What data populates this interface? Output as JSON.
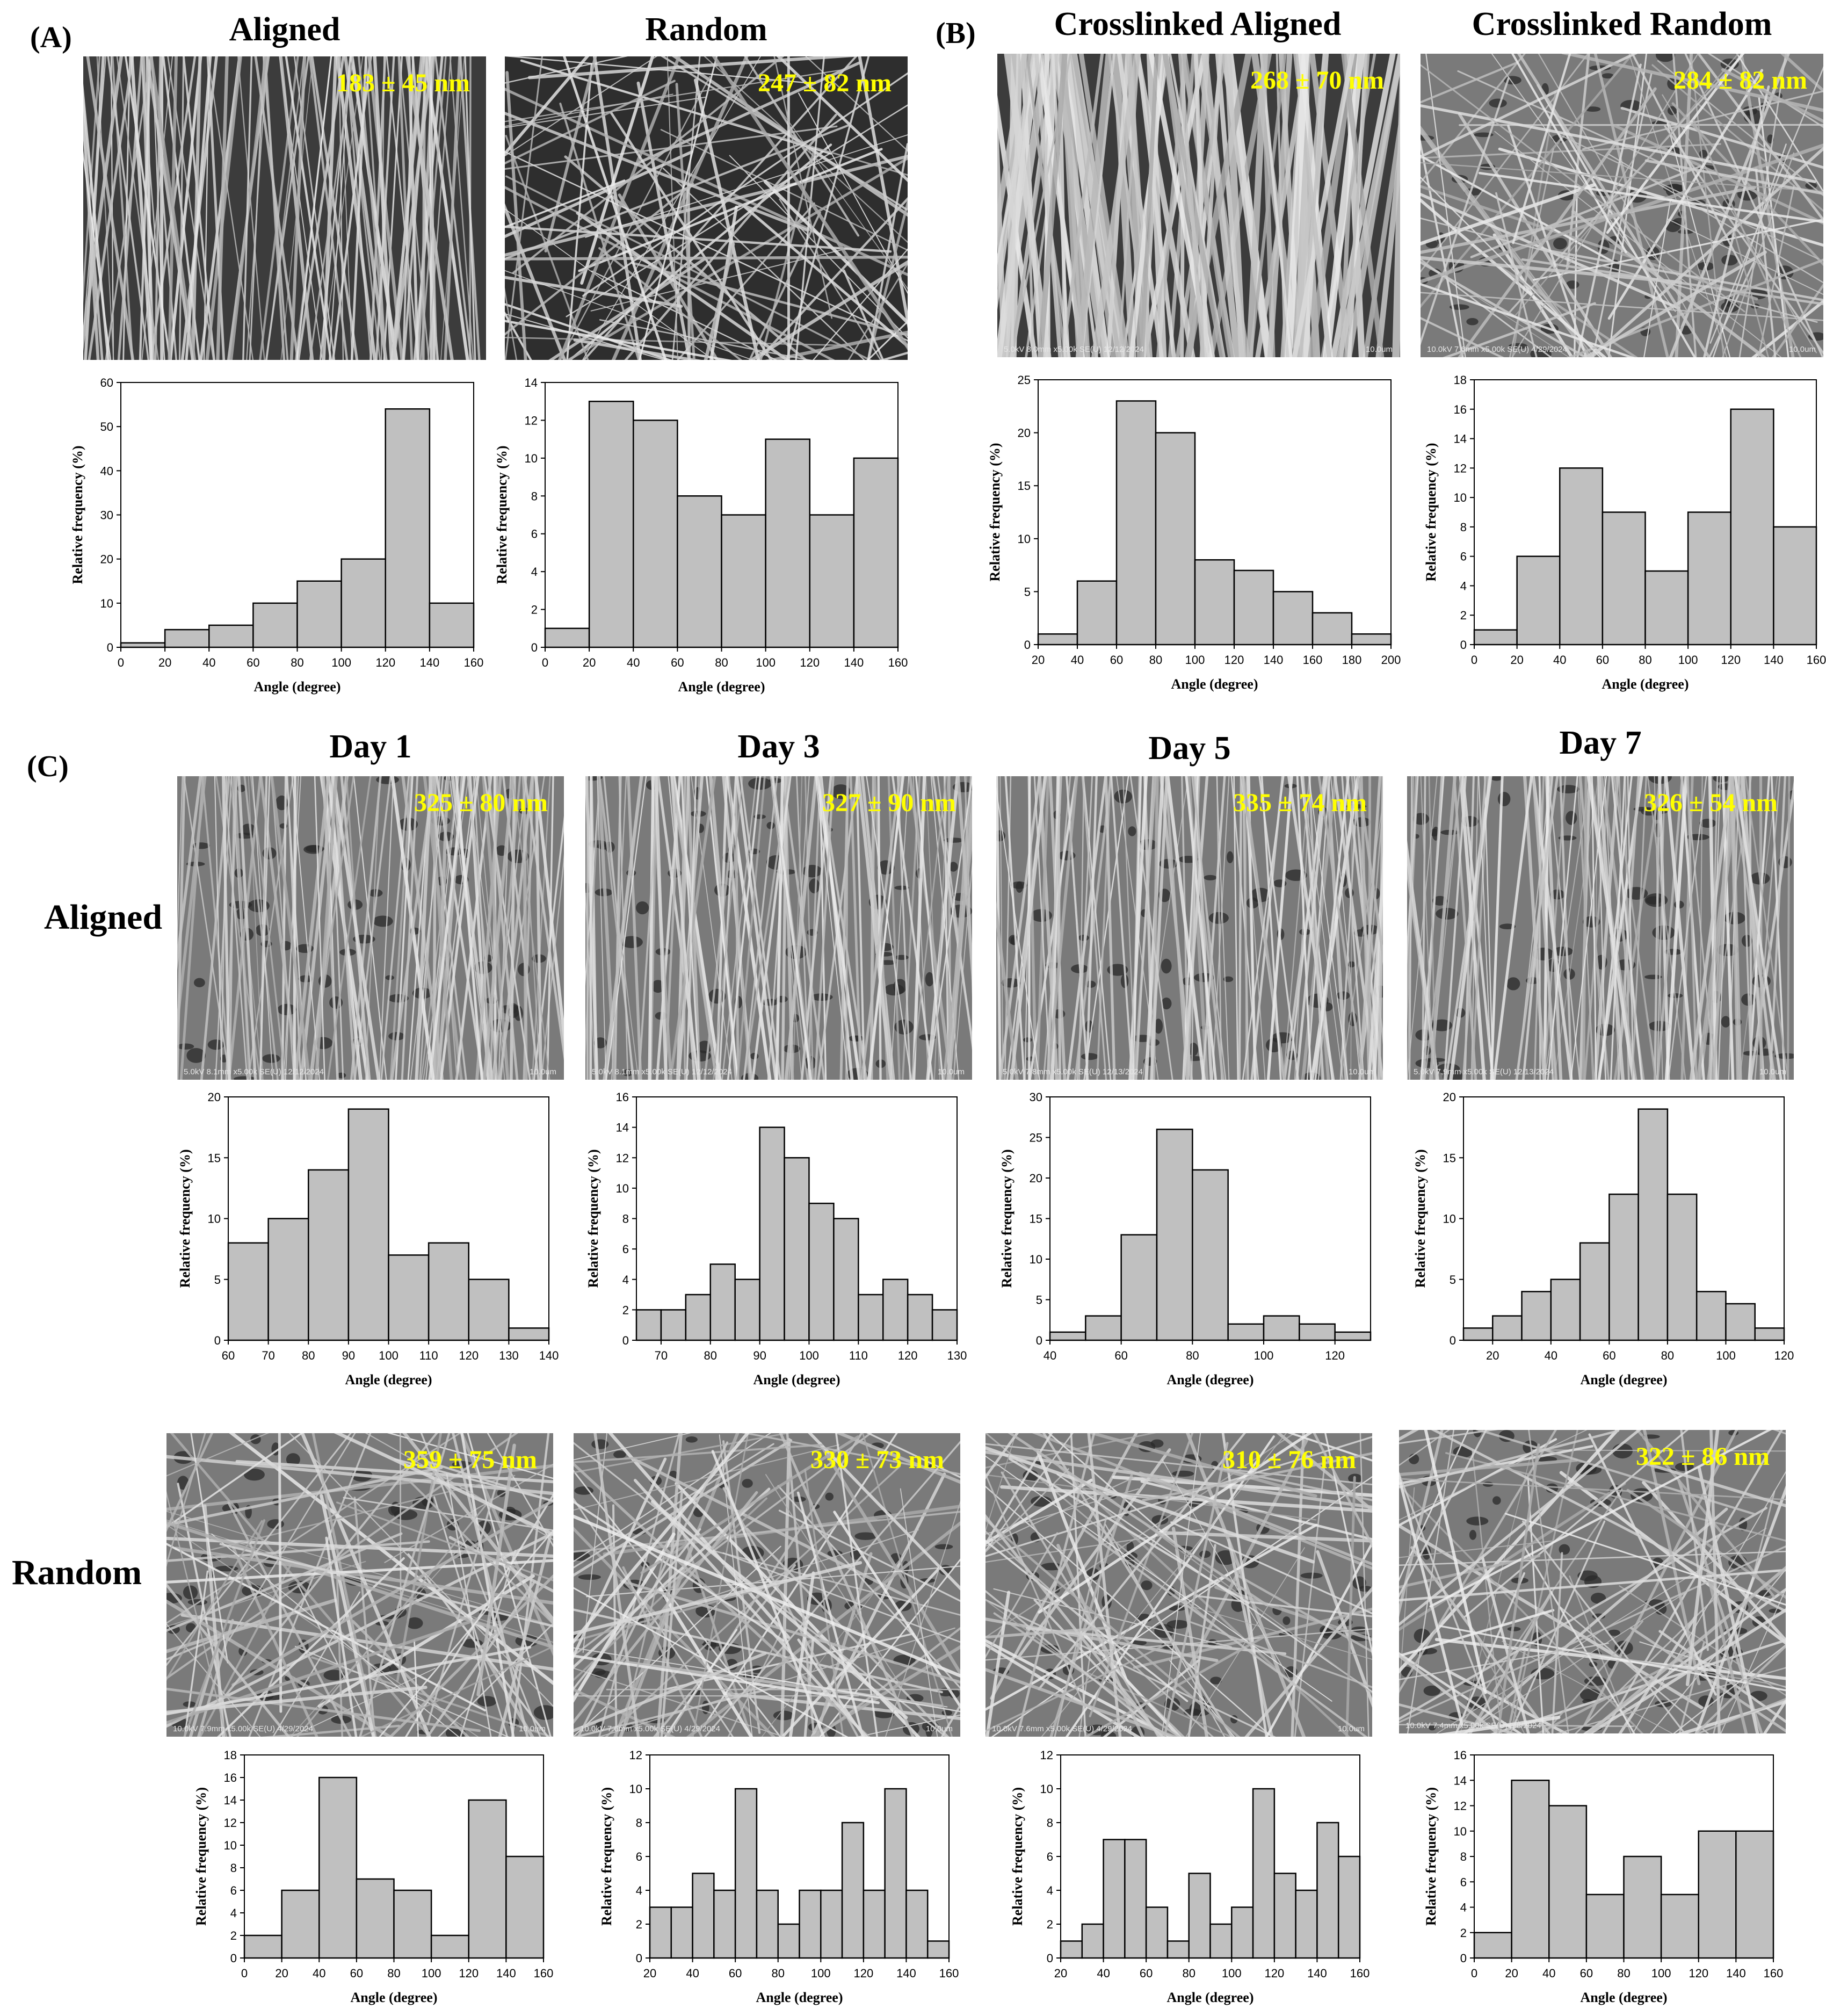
{
  "panels": {
    "A": "(A)",
    "B": "(B)",
    "C": "(C)"
  },
  "column_titles": {
    "aligned": "Aligned",
    "random": "Random",
    "crosslinked_aligned": "Crosslinked Aligned",
    "crosslinked_random": "Crosslinked Random",
    "day1": "Day 1",
    "day3": "Day 3",
    "day5": "Day 5",
    "day7": "Day 7"
  },
  "row_titles": {
    "aligned": "Aligned",
    "random": "Random"
  },
  "sem_images": [
    {
      "id": "a-aligned",
      "diameter": "183 ± 45 nm",
      "meta": "",
      "scale": "",
      "texture": "aligned-dense"
    },
    {
      "id": "a-random",
      "diameter": "247 ± 82 nm",
      "meta": "",
      "scale": "",
      "texture": "random-open"
    },
    {
      "id": "b-aligned",
      "diameter": "268 ± 70 nm",
      "meta": "5.0kV 8.0mm x5.00k SE(U) 12/12/2024",
      "scale": "10.0um",
      "texture": "aligned-thick"
    },
    {
      "id": "b-random",
      "diameter": "284 ± 82 nm",
      "meta": "10.0kV 7.6mm x5.00k SE(U) 4/29/2024",
      "scale": "10.0um",
      "texture": "random-web"
    },
    {
      "id": "c-al-d1",
      "diameter": "325 ± 80 nm",
      "meta": "5.0kV 8.1mm x5.00k SE(U) 12/12/2024",
      "scale": "10.0um",
      "texture": "aligned-web"
    },
    {
      "id": "c-al-d3",
      "diameter": "327 ± 90 nm",
      "meta": "5.0kV 8.1mm x5.00k SE(U) 12/12/2024",
      "scale": "10.0um",
      "texture": "aligned-web"
    },
    {
      "id": "c-al-d5",
      "diameter": "335 ± 74 nm",
      "meta": "5.0kV 7.8mm x5.00k SE(U) 12/13/2024",
      "scale": "10.0um",
      "texture": "aligned-web"
    },
    {
      "id": "c-al-d7",
      "diameter": "326 ± 54 nm",
      "meta": "5.0kV 7.9mm x5.00k SE(U) 12/13/2024",
      "scale": "10.0um",
      "texture": "aligned-web"
    },
    {
      "id": "c-rd-d1",
      "diameter": "359 ± 75 nm",
      "meta": "10.0kV 7.9mm x5.00k SE(U) 4/29/2024",
      "scale": "10.0um",
      "texture": "random-web"
    },
    {
      "id": "c-rd-d3",
      "diameter": "330 ± 73 nm",
      "meta": "10.0kV 7.6mm x5.00k SE(U) 4/29/2024",
      "scale": "10.0um",
      "texture": "random-web"
    },
    {
      "id": "c-rd-d5",
      "diameter": "310 ± 76 nm",
      "meta": "10.0kV 7.6mm x5.00k SE(U) 4/29/2024",
      "scale": "10.0um",
      "texture": "random-web"
    },
    {
      "id": "c-rd-d7",
      "diameter": "322 ± 86 nm",
      "meta": "10.0kV 7.4mm x5.00k SE(U) 5/8/2024",
      "scale": "",
      "texture": "random-web"
    }
  ],
  "chart_data": [
    {
      "id": "h1",
      "type": "bar",
      "xlabel": "Angle (degree)",
      "ylabel": "Relative frequency (%)",
      "edges": [
        0,
        20,
        40,
        60,
        80,
        100,
        120,
        140,
        160
      ],
      "values": [
        1,
        4,
        5,
        10,
        15,
        20,
        54,
        10
      ],
      "ylim": [
        0,
        60
      ],
      "yticks": [
        0,
        10,
        20,
        30,
        40,
        50,
        60
      ],
      "xticks": [
        0,
        20,
        40,
        60,
        80,
        100,
        120,
        140,
        160
      ]
    },
    {
      "id": "h2",
      "type": "bar",
      "xlabel": "Angle (degree)",
      "ylabel": "Relative frequency (%)",
      "edges": [
        0,
        20,
        40,
        60,
        80,
        100,
        120,
        140,
        160
      ],
      "values": [
        1,
        13,
        12,
        8,
        7,
        11,
        7,
        10
      ],
      "ylim": [
        0,
        14
      ],
      "yticks": [
        0,
        2,
        4,
        6,
        8,
        10,
        12,
        14
      ],
      "xticks": [
        0,
        20,
        40,
        60,
        80,
        100,
        120,
        140,
        160
      ]
    },
    {
      "id": "h3",
      "type": "bar",
      "xlabel": "Angle (degree)",
      "ylabel": "Relative frequency (%)",
      "edges": [
        20,
        40,
        60,
        80,
        100,
        120,
        140,
        160,
        180,
        200
      ],
      "values": [
        1,
        6,
        23,
        20,
        8,
        7,
        5,
        3,
        1
      ],
      "ylim": [
        0,
        25
      ],
      "yticks": [
        0,
        5,
        10,
        15,
        20,
        25
      ],
      "xticks": [
        20,
        40,
        60,
        80,
        100,
        120,
        140,
        160,
        180,
        200
      ]
    },
    {
      "id": "h4",
      "type": "bar",
      "xlabel": "Angle (degree)",
      "ylabel": "Relative frequency (%)",
      "edges": [
        0,
        20,
        40,
        60,
        80,
        100,
        120,
        140,
        160
      ],
      "values": [
        1,
        6,
        12,
        9,
        5,
        9,
        16,
        8
      ],
      "ylim": [
        0,
        18
      ],
      "yticks": [
        0,
        2,
        4,
        6,
        8,
        10,
        12,
        14,
        16,
        18
      ],
      "xticks": [
        0,
        20,
        40,
        60,
        80,
        100,
        120,
        140,
        160
      ]
    },
    {
      "id": "h5",
      "type": "bar",
      "xlabel": "Angle (degree)",
      "ylabel": "Relative frequency (%)",
      "edges": [
        60,
        70,
        80,
        90,
        100,
        110,
        120,
        130,
        140
      ],
      "values": [
        8,
        10,
        14,
        19,
        7,
        8,
        5,
        1
      ],
      "ylim": [
        0,
        20
      ],
      "yticks": [
        0,
        5,
        10,
        15,
        20
      ],
      "xticks": [
        60,
        70,
        80,
        90,
        100,
        110,
        120,
        130,
        140
      ]
    },
    {
      "id": "h6",
      "type": "bar",
      "xlabel": "Angle (degree)",
      "ylabel": "Relative frequency (%)",
      "edges": [
        65,
        70,
        75,
        80,
        85,
        90,
        95,
        100,
        105,
        110,
        115,
        120,
        125,
        130
      ],
      "values": [
        2,
        2,
        3,
        5,
        4,
        14,
        12,
        9,
        8,
        3,
        4,
        3,
        2
      ],
      "ylim": [
        0,
        16
      ],
      "yticks": [
        0,
        2,
        4,
        6,
        8,
        10,
        12,
        14,
        16
      ],
      "xticks": [
        70,
        80,
        90,
        100,
        110,
        120,
        130
      ]
    },
    {
      "id": "h7",
      "type": "bar",
      "xlabel": "Angle (degree)",
      "ylabel": "Relative frequency (%)",
      "edges": [
        40,
        50,
        60,
        70,
        80,
        90,
        100,
        110,
        120,
        130
      ],
      "values": [
        1,
        3,
        13,
        26,
        21,
        2,
        3,
        2,
        1
      ],
      "ylim": [
        0,
        30
      ],
      "yticks": [
        0,
        5,
        10,
        15,
        20,
        25,
        30
      ],
      "xticks": [
        40,
        60,
        80,
        100,
        120
      ]
    },
    {
      "id": "h8",
      "type": "bar",
      "xlabel": "Angle (degree)",
      "ylabel": "Relative frequency (%)",
      "edges": [
        10,
        20,
        30,
        40,
        50,
        60,
        70,
        80,
        90,
        100,
        110,
        120
      ],
      "values": [
        1,
        2,
        4,
        5,
        8,
        12,
        19,
        12,
        4,
        3,
        1
      ],
      "ylim": [
        0,
        20
      ],
      "yticks": [
        0,
        5,
        10,
        15,
        20
      ],
      "xticks": [
        20,
        40,
        60,
        80,
        100,
        120
      ]
    },
    {
      "id": "h9",
      "type": "bar",
      "xlabel": "Angle (degree)",
      "ylabel": "Relative frequency (%)",
      "edges": [
        0,
        20,
        40,
        60,
        80,
        100,
        120,
        140,
        160
      ],
      "values": [
        2,
        6,
        16,
        7,
        6,
        2,
        14,
        9
      ],
      "ylim": [
        0,
        18
      ],
      "yticks": [
        0,
        2,
        4,
        6,
        8,
        10,
        12,
        14,
        16,
        18
      ],
      "xticks": [
        0,
        20,
        40,
        60,
        80,
        100,
        120,
        140,
        160
      ]
    },
    {
      "id": "h10",
      "type": "bar",
      "xlabel": "Angle (degree)",
      "ylabel": "Relative frequency (%)",
      "edges": [
        20,
        30,
        40,
        50,
        60,
        70,
        80,
        90,
        100,
        110,
        120,
        130,
        140,
        150,
        160
      ],
      "values": [
        3,
        3,
        5,
        4,
        10,
        4,
        2,
        4,
        4,
        8,
        4,
        10,
        4,
        1
      ],
      "ylim": [
        0,
        12
      ],
      "yticks": [
        0,
        2,
        4,
        6,
        8,
        10,
        12
      ],
      "xticks": [
        20,
        40,
        60,
        80,
        100,
        120,
        140,
        160
      ]
    },
    {
      "id": "h11",
      "type": "bar",
      "xlabel": "Angle (degree)",
      "ylabel": "Relative frequency (%)",
      "edges": [
        20,
        30,
        40,
        50,
        60,
        70,
        80,
        90,
        100,
        110,
        120,
        130,
        140,
        150,
        160
      ],
      "values": [
        1,
        2,
        7,
        7,
        3,
        1,
        5,
        2,
        3,
        10,
        5,
        4,
        8,
        6
      ],
      "ylim": [
        0,
        12
      ],
      "yticks": [
        0,
        2,
        4,
        6,
        8,
        10,
        12
      ],
      "xticks": [
        20,
        40,
        60,
        80,
        100,
        120,
        140,
        160
      ]
    },
    {
      "id": "h12",
      "type": "bar",
      "xlabel": "Angle (degree)",
      "ylabel": "Relative frequency (%)",
      "edges": [
        0,
        20,
        40,
        60,
        80,
        100,
        120,
        140,
        160
      ],
      "values": [
        2,
        14,
        12,
        5,
        8,
        5,
        10,
        10
      ],
      "ylim": [
        0,
        16
      ],
      "yticks": [
        0,
        2,
        4,
        6,
        8,
        10,
        12,
        14,
        16
      ],
      "xticks": [
        0,
        20,
        40,
        60,
        80,
        100,
        120,
        140,
        160
      ]
    }
  ]
}
